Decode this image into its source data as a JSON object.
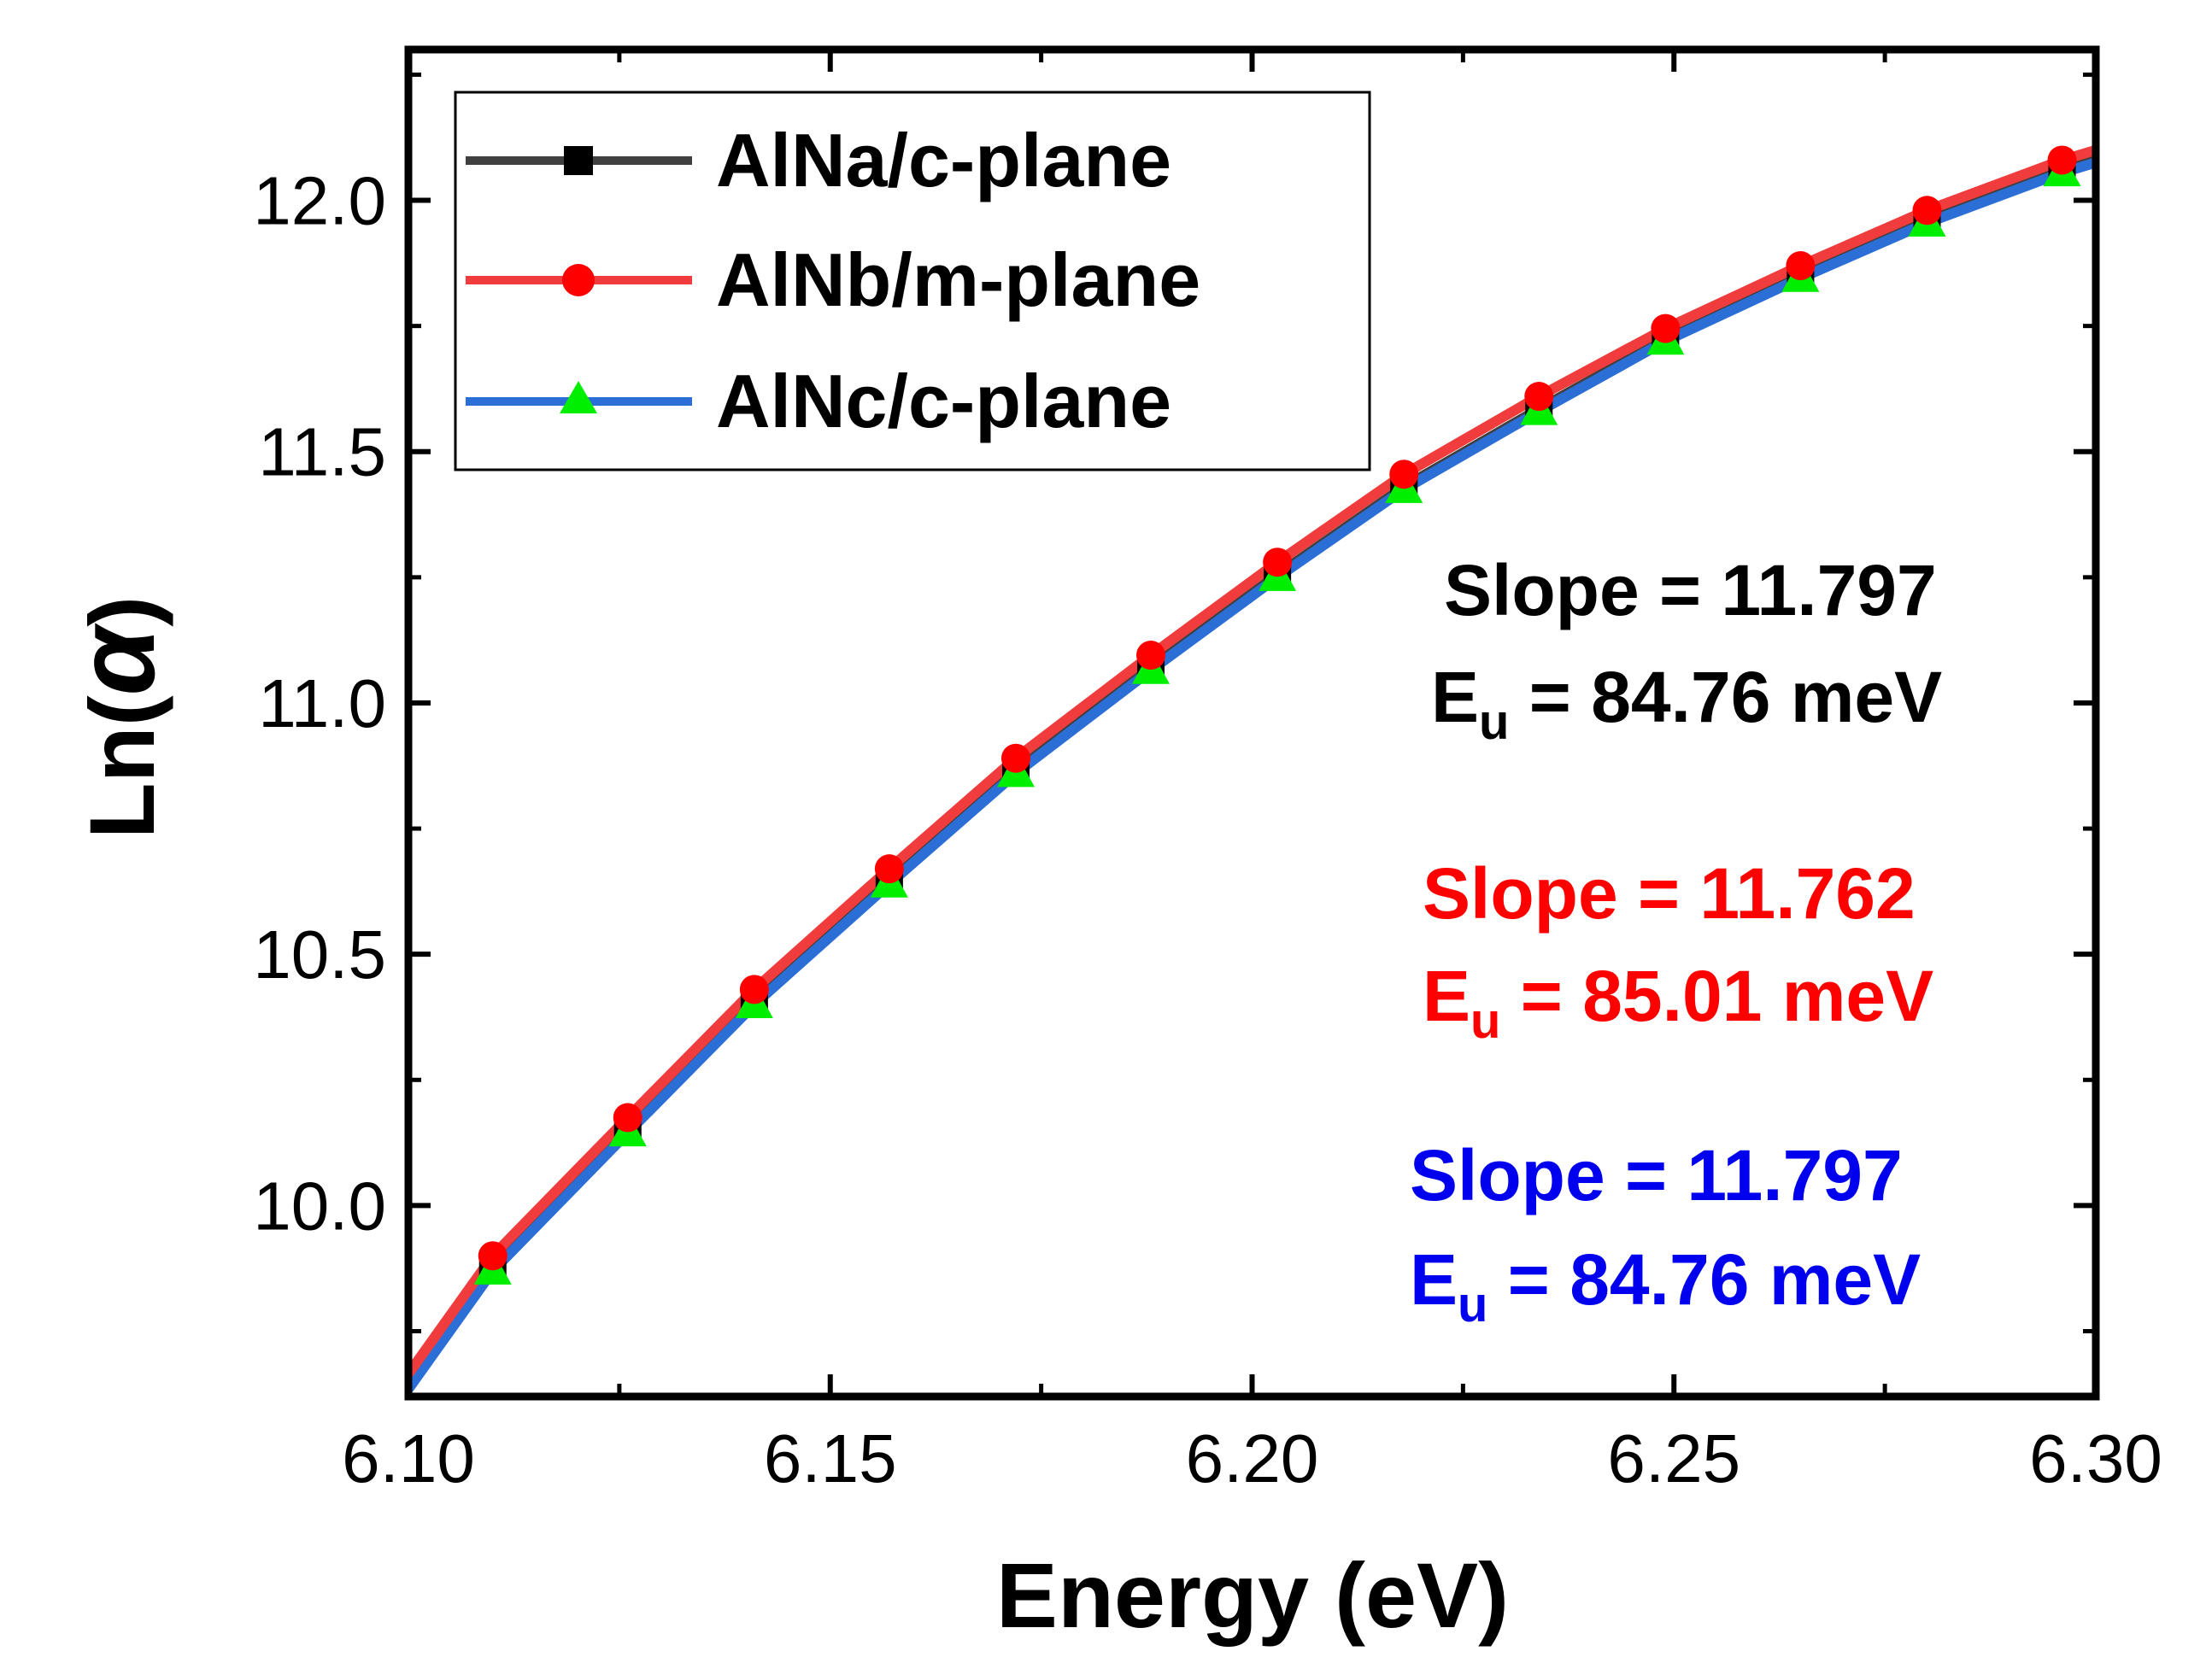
{
  "chart_data": {
    "type": "line",
    "xlabel": "Energy (eV)",
    "ylabel_prefix": "Ln(",
    "ylabel_symbol": "α",
    "ylabel_suffix": ")",
    "xlim": [
      6.1,
      6.3
    ],
    "ylim": [
      9.62,
      12.3
    ],
    "x_ticks": [
      6.1,
      6.15,
      6.2,
      6.25,
      6.3
    ],
    "x_tick_labels": [
      "6.10",
      "6.15",
      "6.20",
      "6.25",
      "6.30"
    ],
    "y_ticks": [
      10.0,
      10.5,
      11.0,
      11.5,
      12.0
    ],
    "y_tick_labels": [
      "10.0",
      "10.5",
      "11.0",
      "11.5",
      "12.0"
    ],
    "grid": false,
    "legend_position": "top-left",
    "series": [
      {
        "name": "AlNa/c-plane",
        "line_color": "#3f3f3f",
        "marker": "square",
        "marker_color": "#000000",
        "x": [
          6.1,
          6.11,
          6.126,
          6.141,
          6.157,
          6.172,
          6.188,
          6.203,
          6.218,
          6.234,
          6.249,
          6.265,
          6.28,
          6.296,
          6.3
        ],
        "y": [
          9.64,
          9.875,
          10.15,
          10.405,
          10.645,
          10.865,
          11.07,
          11.255,
          11.43,
          11.585,
          11.725,
          11.85,
          11.96,
          12.06,
          12.08
        ]
      },
      {
        "name": "AlNb/m-plane",
        "line_color": "#f03c3c",
        "marker": "circle",
        "marker_color": "#ff0000",
        "x": [
          6.1,
          6.11,
          6.126,
          6.141,
          6.157,
          6.172,
          6.188,
          6.203,
          6.218,
          6.234,
          6.249,
          6.265,
          6.28,
          6.296,
          6.3
        ],
        "y": [
          9.665,
          9.9,
          10.175,
          10.43,
          10.67,
          10.89,
          11.095,
          11.28,
          11.455,
          11.61,
          11.745,
          11.87,
          11.98,
          12.08,
          12.1
        ]
      },
      {
        "name": "AlNc/c-plane",
        "line_color": "#2b6fd6",
        "marker": "triangle",
        "marker_color": "#00ee00",
        "x": [
          6.1,
          6.11,
          6.126,
          6.141,
          6.157,
          6.172,
          6.188,
          6.203,
          6.218,
          6.234,
          6.249,
          6.265,
          6.28,
          6.296,
          6.3
        ],
        "y": [
          9.635,
          9.87,
          10.145,
          10.4,
          10.64,
          10.86,
          11.065,
          11.25,
          11.425,
          11.58,
          11.72,
          11.845,
          11.955,
          12.055,
          12.075
        ]
      }
    ],
    "annotations": [
      {
        "slope_text": "Slope = 11.797",
        "eu_main": "E",
        "eu_sub": "u",
        "eu_value": " = 84.76 meV",
        "color": "#000000"
      },
      {
        "slope_text": "Slope = 11.762",
        "eu_main": "E",
        "eu_sub": "u",
        "eu_value": " = 85.01 meV",
        "color": "#ff0000"
      },
      {
        "slope_text": "Slope = 11.797",
        "eu_main": "E",
        "eu_sub": "u",
        "eu_value": " = 84.76 meV",
        "color": "#0000ee"
      }
    ]
  }
}
